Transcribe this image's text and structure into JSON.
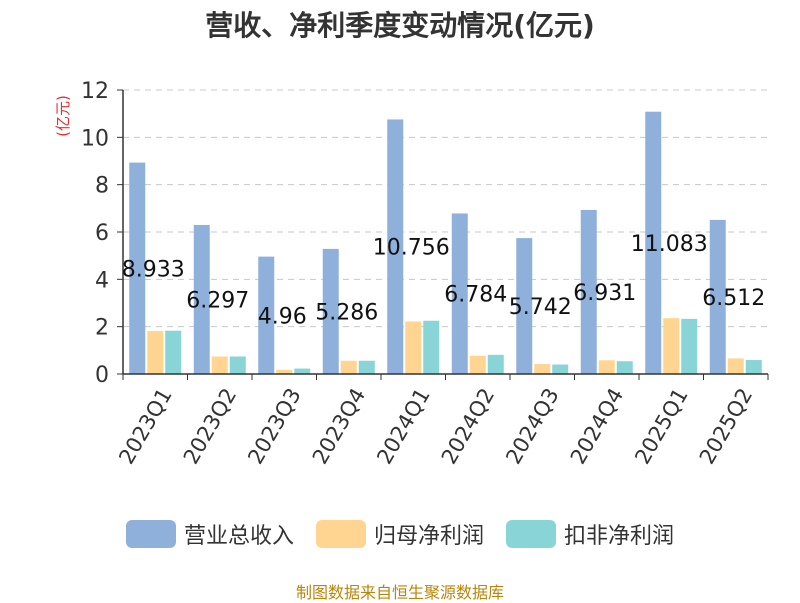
{
  "chart_data": {
    "type": "bar",
    "title": "营收、净利季度变动情况(亿元)",
    "ylabel": "(亿元)",
    "ylim": [
      0,
      12
    ],
    "yticks": [
      0,
      2,
      4,
      6,
      8,
      10,
      12
    ],
    "grid": true,
    "legend_position": "bottom",
    "categories": [
      "2023Q1",
      "2023Q2",
      "2023Q3",
      "2023Q4",
      "2024Q1",
      "2024Q2",
      "2024Q3",
      "2024Q4",
      "2025Q1",
      "2025Q2"
    ],
    "series": [
      {
        "name": "营业总收入",
        "color": "#8eb0db",
        "values": [
          8.933,
          6.297,
          4.96,
          5.286,
          10.756,
          6.784,
          5.742,
          6.931,
          11.083,
          6.512
        ],
        "data_labels": [
          "8.933",
          "6.297",
          "4.96",
          "5.286",
          "10.756",
          "6.784",
          "5.742",
          "6.931",
          "11.083",
          "6.512"
        ]
      },
      {
        "name": "归母净利润",
        "color": "#ffd591",
        "values": [
          1.82,
          0.74,
          0.18,
          0.56,
          2.22,
          0.77,
          0.42,
          0.58,
          2.36,
          0.66
        ]
      },
      {
        "name": "扣非净利润",
        "color": "#88d4d6",
        "values": [
          1.83,
          0.74,
          0.23,
          0.56,
          2.25,
          0.81,
          0.4,
          0.54,
          2.33,
          0.59
        ]
      }
    ]
  },
  "source_text": "制图数据来自恒生聚源数据库"
}
